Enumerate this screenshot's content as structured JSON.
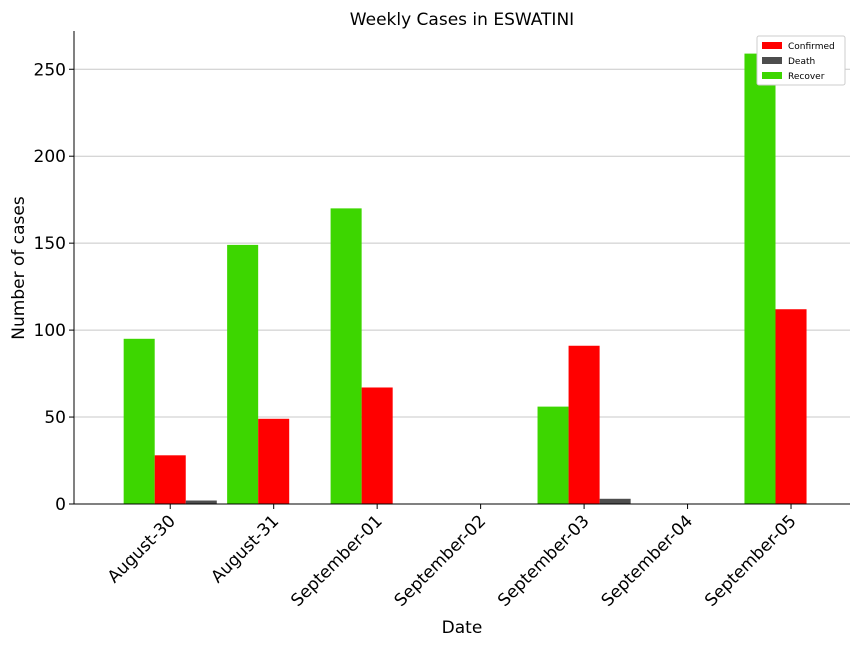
{
  "chart_data": {
    "type": "bar",
    "title": "Weekly Cases in ESWATINI",
    "xlabel": "Date",
    "ylabel": "Number of cases",
    "categories": [
      "August-30",
      "August-31",
      "September-01",
      "September-02",
      "September-03",
      "September-04",
      "September-05"
    ],
    "series": [
      {
        "name": "Recover",
        "color": "#3dd600",
        "values": [
          95,
          149,
          170,
          0,
          56,
          0,
          259
        ]
      },
      {
        "name": "Confirmed",
        "color": "#ff0000",
        "values": [
          28,
          49,
          67,
          0,
          91,
          0,
          112
        ]
      },
      {
        "name": "Death",
        "color": "#4d4d4d",
        "values": [
          2,
          0,
          0,
          0,
          3,
          0,
          0
        ]
      }
    ],
    "legend_order": [
      "Confirmed",
      "Death",
      "Recover"
    ],
    "legend_position": "top-right",
    "ylim": [
      0,
      272
    ],
    "yticks": [
      0,
      50,
      100,
      150,
      200,
      250
    ],
    "grid": "horizontal"
  }
}
